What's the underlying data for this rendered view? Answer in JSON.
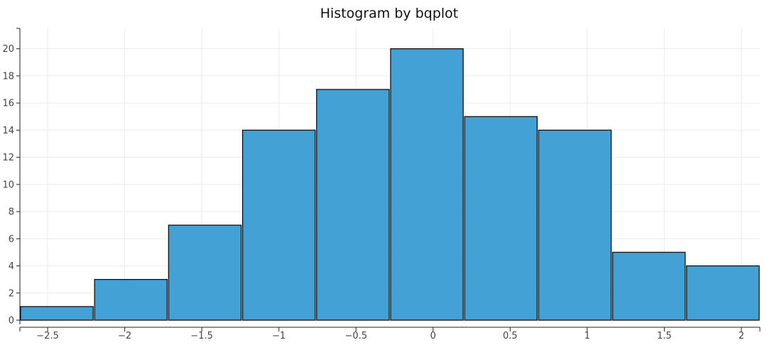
{
  "chart_data": {
    "type": "bar",
    "title": "Histogram by bqplot",
    "xlabel": "",
    "ylabel": "",
    "bins": [
      {
        "start": -2.68,
        "end": -2.2,
        "count": 1
      },
      {
        "start": -2.2,
        "end": -1.72,
        "count": 3
      },
      {
        "start": -1.72,
        "end": -1.24,
        "count": 7
      },
      {
        "start": -1.24,
        "end": -0.76,
        "count": 14
      },
      {
        "start": -0.76,
        "end": -0.28,
        "count": 17
      },
      {
        "start": -0.28,
        "end": 0.2,
        "count": 20
      },
      {
        "start": 0.2,
        "end": 0.68,
        "count": 15
      },
      {
        "start": 0.68,
        "end": 1.16,
        "count": 14
      },
      {
        "start": 1.16,
        "end": 1.64,
        "count": 5
      },
      {
        "start": 1.64,
        "end": 2.12,
        "count": 4
      }
    ],
    "xlim": [
      -2.68,
      2.12
    ],
    "ylim": [
      0,
      21.5
    ],
    "x_ticks": [
      -2.5,
      -2,
      -1.5,
      -1,
      -0.5,
      0,
      0.5,
      1,
      1.5,
      2
    ],
    "x_tick_labels": [
      "−2.5",
      "−2",
      "−1.5",
      "−1",
      "−0.5",
      "0",
      "0.5",
      "1",
      "1.5",
      "2"
    ],
    "y_ticks": [
      0,
      2,
      4,
      6,
      8,
      10,
      12,
      14,
      16,
      18,
      20
    ],
    "y_tick_labels": [
      "0",
      "2",
      "4",
      "6",
      "8",
      "10",
      "12",
      "14",
      "16",
      "18",
      "20"
    ],
    "grid": true,
    "bar_color": "#43a1d5",
    "bar_edge_color": "#111111"
  }
}
